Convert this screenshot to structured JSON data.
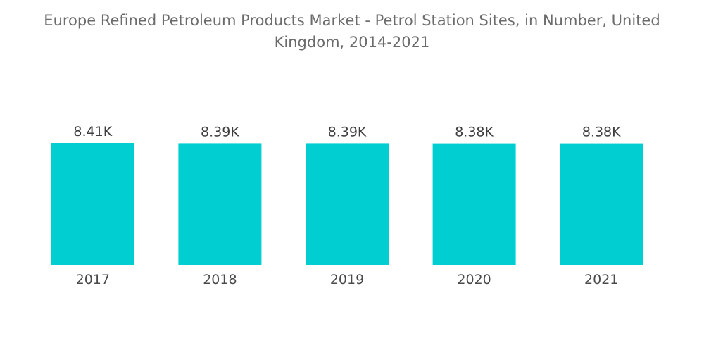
{
  "chart_data": {
    "type": "bar",
    "title": "Europe Refined Petroleum Products Market - Petrol Station Sites, in Number, United Kingdom, 2014-2021",
    "xlabel": "",
    "ylabel": "",
    "categories": [
      "2017",
      "2018",
      "2019",
      "2020",
      "2021"
    ],
    "values": [
      8410,
      8390,
      8390,
      8380,
      8380
    ],
    "value_labels": [
      "8.41K",
      "8.39K",
      "8.39K",
      "8.38K",
      "8.38K"
    ],
    "ylim": [
      0,
      8410
    ],
    "grid": false,
    "legend": "none",
    "bar_color": "#00ced1"
  }
}
